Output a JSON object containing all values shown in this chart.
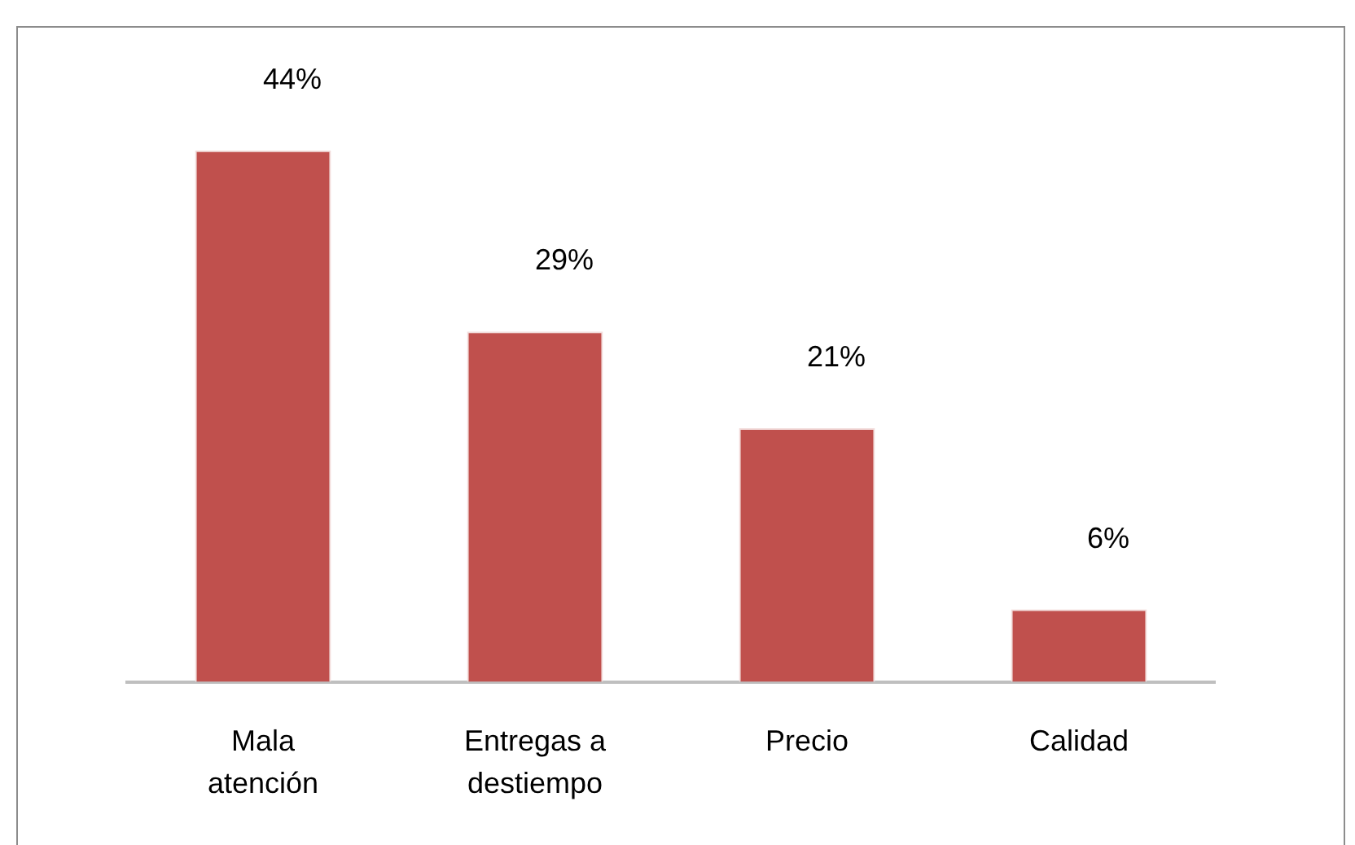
{
  "chart_data": {
    "type": "bar",
    "categories": [
      "Mala atención",
      "Entregas a destiempo",
      "Precio",
      "Calidad"
    ],
    "values": [
      44,
      29,
      21,
      6
    ],
    "color": "#c0504d",
    "value_labels": [
      "44%",
      "29%",
      "21%",
      "6%"
    ]
  }
}
